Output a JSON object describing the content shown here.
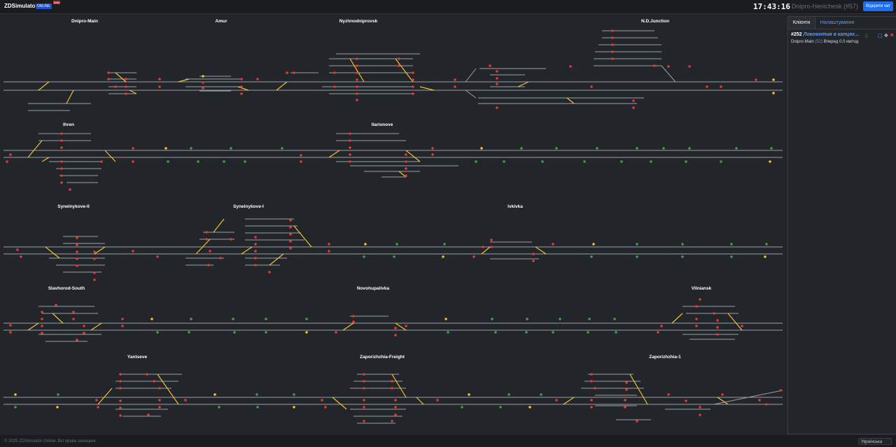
{
  "app": {
    "brand": "ZDSimulator",
    "badge_online": "ONLINE",
    "badge_beta": "beta",
    "clock": "17:43:16",
    "route_name": "Dnipro-Henichesk (#57)",
    "chat_button": "Відкрити чат"
  },
  "stations": [
    {
      "name": "Dnipro-Main"
    },
    {
      "name": "Amur"
    },
    {
      "name": "Nyzhnodniprovsk"
    },
    {
      "name": "N.D.Junction"
    },
    {
      "name": "Ihren"
    },
    {
      "name": "Ilarionove"
    },
    {
      "name": "Synelnykove-II"
    },
    {
      "name": "Synelnykove-I"
    },
    {
      "name": "Ivkivka"
    },
    {
      "name": "Slavhorod-South"
    },
    {
      "name": "Novohupalivka"
    },
    {
      "name": "Vilniansk"
    },
    {
      "name": "Yantseve"
    },
    {
      "name": "Zaporizhzhia-Freight"
    },
    {
      "name": "Zaporizhzhia-1"
    }
  ],
  "panel": {
    "tab_clients": "Клієнти",
    "tab_settings": "Налаштування",
    "client_id": "#252",
    "client_name": "Локомотив в капцях...",
    "client_station": "Dnipro-Main",
    "client_station_count": "(52)",
    "client_direction": "Вперед",
    "client_speed": "0.0 км/год"
  },
  "footer": {
    "copyright": "© 2025 ZDSimulator Online. Всі права захищені.",
    "language": "Українська"
  },
  "colors": {
    "red": "#e53935",
    "green": "#43a047",
    "yellow": "#f2c230",
    "track": "#9aa0a8"
  }
}
